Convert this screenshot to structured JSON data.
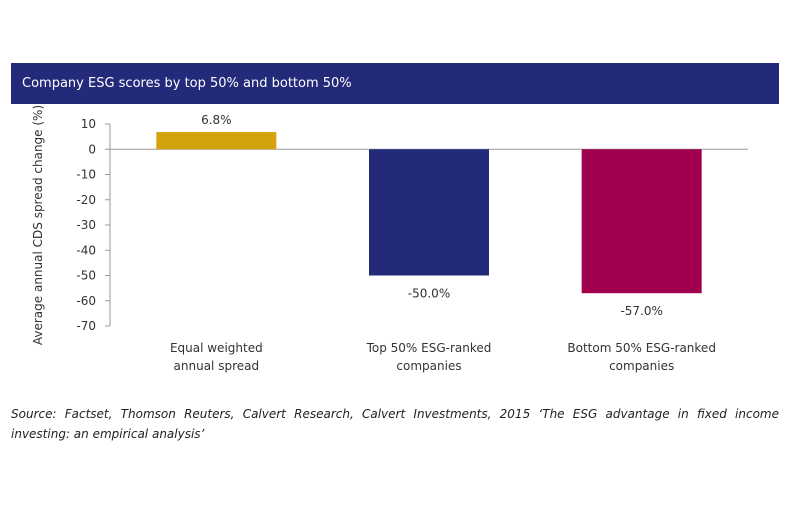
{
  "banner": {
    "title": "Company ESG scores by top 50% and bottom 50%"
  },
  "chart_data": {
    "type": "bar",
    "title": "Company ESG scores by top 50% and bottom 50%",
    "ylabel": "Average annual CDS spread change (%)",
    "xlabel": "",
    "ylim": [
      -70,
      10
    ],
    "yticks": [
      10,
      0,
      -10,
      -20,
      -30,
      -40,
      -50,
      -60,
      -70
    ],
    "ytick_labels": [
      "10",
      "0",
      "-10",
      "-20",
      "-30",
      "-40",
      "-50",
      "-60",
      "-70"
    ],
    "categories": [
      [
        "Equal weighted",
        "annual spread"
      ],
      [
        "Top 50% ESG-ranked",
        "companies"
      ],
      [
        "Bottom 50% ESG-ranked",
        "companies"
      ]
    ],
    "values": [
      6.8,
      -50.0,
      -57.0
    ],
    "data_labels": [
      "6.8%",
      "-50.0%",
      "-57.0%"
    ],
    "colors": [
      "#d4a20d",
      "#232a7a",
      "#a1004f"
    ],
    "grid": false,
    "legend": "none"
  },
  "source": {
    "text": "Source: Factset, Thomson Reuters, Calvert Research, Calvert Investments, 2015 ‘The ESG advantage in fixed income investing: an empirical analysis’"
  }
}
